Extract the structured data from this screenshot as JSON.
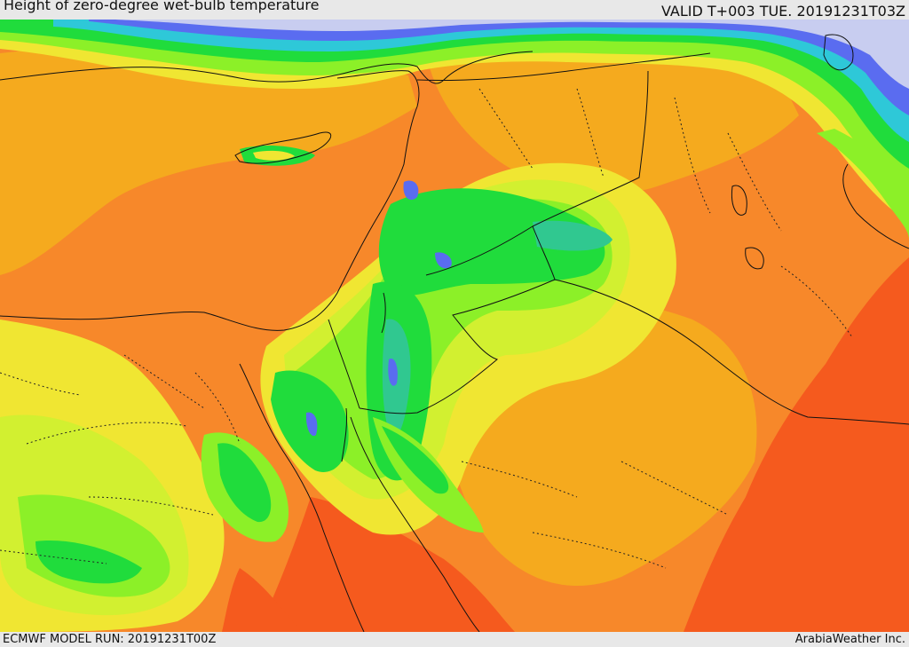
{
  "header": {
    "title": "Height of zero-degree wet-bulb temperature",
    "valid": "VALID T+003 TUE. 20191231T03Z"
  },
  "footer": {
    "model_run": "ECMWF MODEL RUN: 20191231T00Z",
    "credit": "ArabiaWeather Inc."
  },
  "palette": {
    "lowest": "#c8cdf0",
    "blue": "#5a6cf0",
    "cyan": "#2ec8d8",
    "teal": "#30c890",
    "green": "#20dc3c",
    "light_green": "#8cf028",
    "yellow_green": "#d2f030",
    "yellow": "#f0e632",
    "gold": "#f5aa1e",
    "orange": "#f7882a",
    "red_orange": "#f55a1e",
    "red": "#f0461a"
  }
}
